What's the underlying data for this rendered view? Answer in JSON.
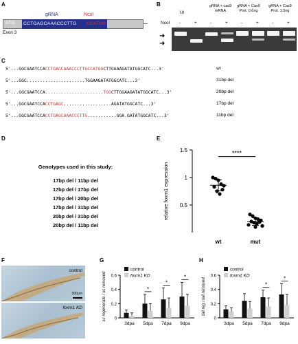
{
  "panels": {
    "a": "A",
    "b": "B",
    "c": "C",
    "d": "D",
    "e": "E",
    "f": "F",
    "g": "G",
    "h": "H"
  },
  "panel_a": {
    "atg": "ATG",
    "gRNA_label": "gRNA",
    "ncoi_label": "NcoI",
    "seq": "CCTGAGCAAACCCTTG",
    "seq_tail": "CCATGG",
    "exon": "Exon 3"
  },
  "panel_b": {
    "ncoi_row": "NcoI",
    "groups": [
      "UI",
      "gRNA + cas9 mRNA",
      "gRNA + Cas9 Prot. 0.6ng",
      "gRNA + Cas9 Prot. 1.5ng"
    ],
    "signs": [
      "-",
      "+",
      "-",
      "+",
      "-",
      "+",
      "-",
      "+"
    ]
  },
  "panel_c": {
    "rows": [
      {
        "pre": "5'...GGCGAATCCA",
        "red": "CCTGAGCAAACCCTTGCCATGG",
        "post": "CTTGGAAGATATGGCATC...3'",
        "label": "wt"
      },
      {
        "pre": "5'...GGC.......",
        "red": "",
        "post": "...............TGGAAGATATGGCATC...3'",
        "label": "31bp del"
      },
      {
        "pre": "5'...GGCGAATCCA",
        "red": "......................TGG",
        "post": "CTTGGAAGATATGGCATC...3'",
        "label": "20bp del"
      },
      {
        "pre": "5'...GGCGAATCCA",
        "red": "CCTGAGC",
        "post": "..................AGATATGGCATC...3'",
        "label": "17bp del"
      },
      {
        "pre": "5'...GGCGAATCCA",
        "red": "CCTGAGCAAACCCTTG",
        "post": "...........GGA.GATATGGCATC...3'",
        "label": "11bp del"
      }
    ]
  },
  "panel_d": {
    "title": "Genotypes used in this study:",
    "genotypes": [
      "17bp del / 11bp del",
      "17bp del / 17bp del",
      "17bp del / 20bp del",
      "17bp del / 31bp del",
      "20bp del / 31bp del",
      "20bp del / 11bp del"
    ]
  },
  "panel_f": {
    "control": "control",
    "kd": "foxm1 KD",
    "scale": "500μm"
  },
  "colors": {
    "red": "#e8312b",
    "blue": "#262f8c",
    "purple": "#6f55b0",
    "gel": "#3a3a3a",
    "bar_control": "#111111",
    "bar_kd": "#cfcfcf"
  },
  "chart_data": [
    {
      "type": "scatter",
      "panel": "E",
      "ylabel": "relative foxm1 expression",
      "categories": [
        "wt",
        "mut"
      ],
      "ylim": [
        0,
        1.5
      ],
      "yticks": [
        0.5,
        1,
        1.5
      ],
      "significance": "****",
      "series": [
        {
          "name": "wt",
          "values": [
            1.0,
            0.98,
            0.95,
            0.88,
            0.85,
            0.83,
            0.78,
            0.75,
            0.7
          ],
          "mean": 0.86,
          "sd": 0.1
        },
        {
          "name": "mut",
          "values": [
            0.33,
            0.3,
            0.26,
            0.24,
            0.22,
            0.2,
            0.19,
            0.18,
            0.16,
            0.14,
            0.12,
            0.1
          ],
          "mean": 0.2,
          "sd": 0.07
        }
      ]
    },
    {
      "type": "bar",
      "panel": "G",
      "ylabel": "sc regenerate / sc removed",
      "categories": [
        "3dpa",
        "5dpa",
        "7dpa",
        "9dpa"
      ],
      "ylim": [
        0,
        0.6
      ],
      "yticks": [
        0,
        0.2,
        0.4,
        0.6
      ],
      "legend": [
        "control",
        "foxm1 KD"
      ],
      "significance": [
        "",
        "*",
        "*",
        "*"
      ],
      "series": [
        {
          "name": "control",
          "values": [
            0.07,
            0.2,
            0.26,
            0.3
          ],
          "err": [
            0.04,
            0.13,
            0.16,
            0.2
          ]
        },
        {
          "name": "foxm1 KD",
          "values": [
            0.03,
            0.1,
            0.14,
            0.17
          ],
          "err": [
            0.04,
            0.1,
            0.14,
            0.16
          ]
        }
      ]
    },
    {
      "type": "bar",
      "panel": "H",
      "ylabel": "tail reg / tail removed",
      "categories": [
        "3dpa",
        "5dpa",
        "7dpa",
        "9dpa"
      ],
      "ylim": [
        0,
        0.6
      ],
      "yticks": [
        0,
        0.2,
        0.4,
        0.6
      ],
      "legend": [
        "control",
        "foxm1 KD"
      ],
      "significance": [
        "",
        "",
        "*",
        "*"
      ],
      "series": [
        {
          "name": "control",
          "values": [
            0.12,
            0.24,
            0.29,
            0.33
          ],
          "err": [
            0.05,
            0.1,
            0.1,
            0.15
          ]
        },
        {
          "name": "foxm1 KD",
          "values": [
            0.09,
            0.13,
            0.16,
            0.18
          ],
          "err": [
            0.05,
            0.1,
            0.12,
            0.15
          ]
        }
      ]
    }
  ]
}
